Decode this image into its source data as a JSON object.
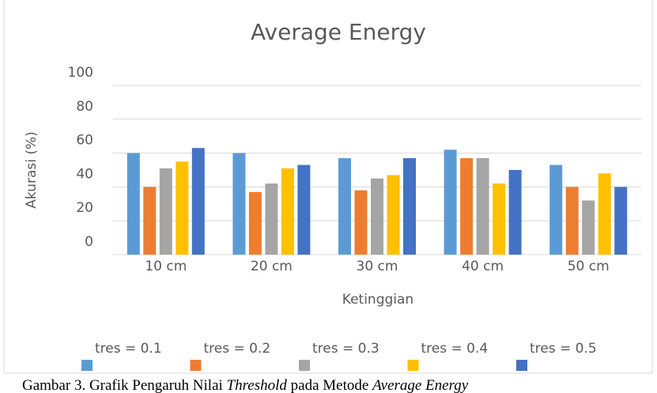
{
  "chart_data": {
    "type": "bar",
    "title": "Average Energy",
    "y_label": "Akurasi (%)",
    "x_label": "Ketinggian",
    "categories": [
      "10 cm",
      "20 cm",
      "30 cm",
      "40 cm",
      "50 cm"
    ],
    "series": [
      {
        "name": "tres = 0.1",
        "color": "#5b9bd5",
        "values": [
          60,
          60,
          57,
          62,
          53
        ]
      },
      {
        "name": "tres = 0.2",
        "color": "#ed7d31",
        "values": [
          40,
          37,
          38,
          57,
          40
        ]
      },
      {
        "name": "tres = 0.3",
        "color": "#a5a5a5",
        "values": [
          51,
          42,
          45,
          57,
          32
        ]
      },
      {
        "name": "tres = 0.4",
        "color": "#ffc000",
        "values": [
          55,
          51,
          47,
          42,
          48
        ]
      },
      {
        "name": "tres = 0.5",
        "color": "#4472c4",
        "values": [
          63,
          53,
          57,
          50,
          40
        ]
      }
    ],
    "ylim": [
      0,
      100
    ],
    "yticks": [
      0,
      20,
      40,
      60,
      80,
      100
    ],
    "grid": true,
    "legend": "bottom"
  },
  "caption": {
    "parts": [
      "Gambar 3. Grafik Pengaruh Nilai ",
      "Threshold",
      " pada Metode ",
      "Average Energy"
    ]
  }
}
